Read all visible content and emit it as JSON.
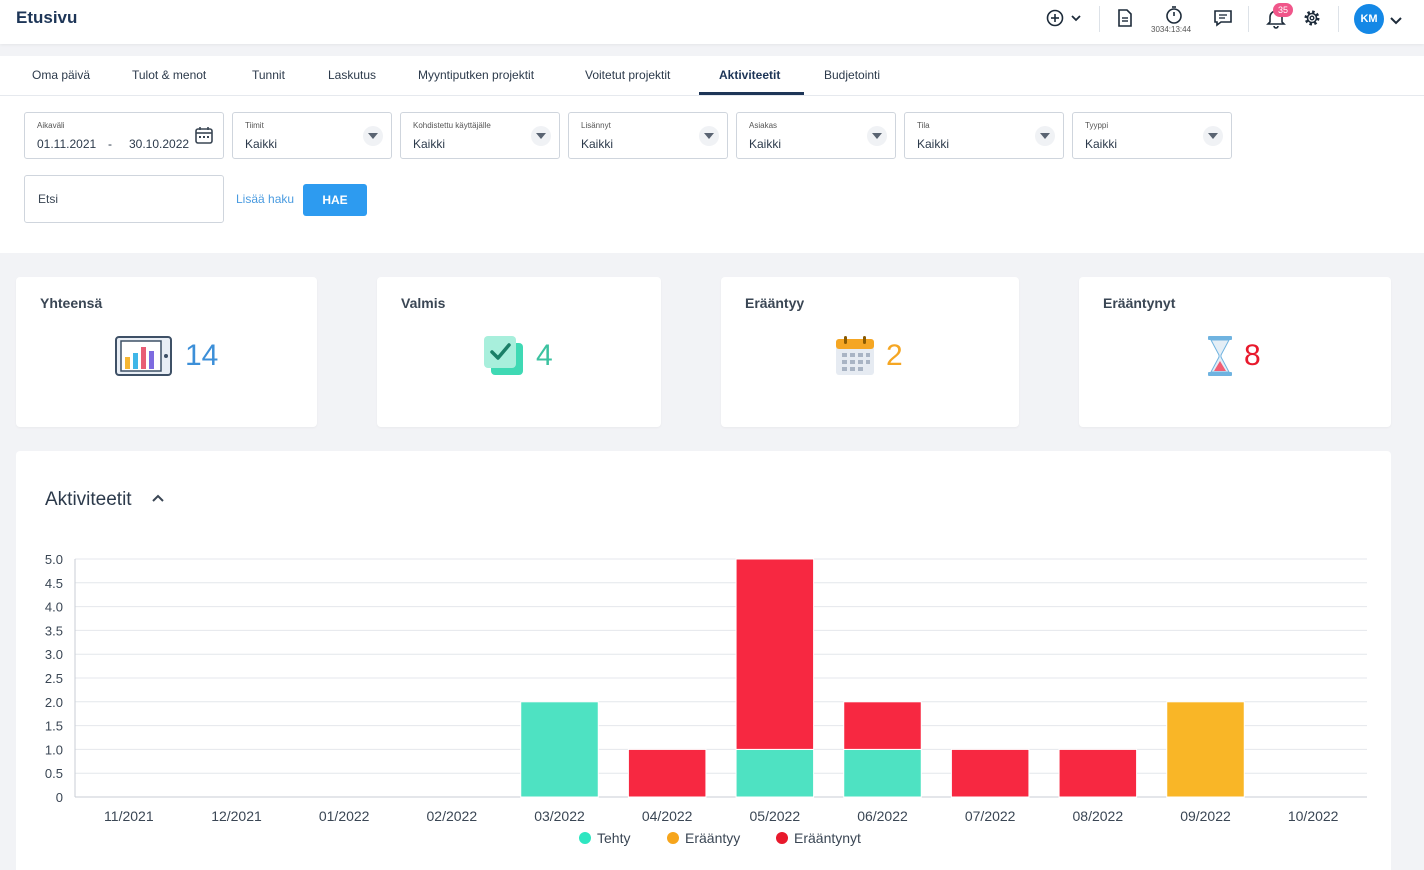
{
  "header": {
    "title": "Etusivu",
    "timer": "3034:13:44",
    "notifications": "35",
    "avatar": "KM"
  },
  "tabs": [
    {
      "label": "Oma päivä"
    },
    {
      "label": "Tulot & menot"
    },
    {
      "label": "Tunnit"
    },
    {
      "label": "Laskutus"
    },
    {
      "label": "Myyntiputken projektit"
    },
    {
      "label": "Voitetut projektit"
    },
    {
      "label": "Aktiviteetit",
      "active": true
    },
    {
      "label": "Budjetointi"
    }
  ],
  "filters": {
    "daterange": {
      "label": "Aikaväli",
      "start": "01.11.2021",
      "sep": "-",
      "end": "30.10.2022"
    },
    "selects": [
      {
        "label": "Tiimit",
        "value": "Kaikki"
      },
      {
        "label": "Kohdistettu käyttäjälle",
        "value": "Kaikki"
      },
      {
        "label": "Lisännyt",
        "value": "Kaikki"
      },
      {
        "label": "Asiakas",
        "value": "Kaikki"
      },
      {
        "label": "Tila",
        "value": "Kaikki"
      },
      {
        "label": "Tyyppi",
        "value": "Kaikki"
      }
    ],
    "search_placeholder": "Etsi",
    "more_search": "Lisää haku",
    "search_button": "HAE"
  },
  "stats": [
    {
      "title": "Yhteensä",
      "value": "14",
      "color": "#3c8fd8",
      "icon": "bar-chart-icon"
    },
    {
      "title": "Valmis",
      "value": "4",
      "color": "#3cc2a0",
      "icon": "check-icon"
    },
    {
      "title": "Erääntyy",
      "value": "2",
      "color": "#f5a623",
      "icon": "calendar-icon"
    },
    {
      "title": "Erääntynyt",
      "value": "8",
      "color": "#e8192c",
      "icon": "hourglass-icon"
    }
  ],
  "panel": {
    "title": "Aktiviteetit"
  },
  "chart_data": {
    "type": "bar",
    "stacked": true,
    "categories": [
      "11/2021",
      "12/2021",
      "01/2022",
      "02/2022",
      "03/2022",
      "04/2022",
      "05/2022",
      "06/2022",
      "07/2022",
      "08/2022",
      "09/2022",
      "10/2022"
    ],
    "series": [
      {
        "name": "Tehty",
        "color": "#4ee2c2",
        "values": [
          0,
          0,
          0,
          0,
          2,
          0,
          1,
          1,
          0,
          0,
          0,
          0
        ]
      },
      {
        "name": "Erääntyy",
        "color": "#f9b627",
        "values": [
          0,
          0,
          0,
          0,
          0,
          0,
          0,
          0,
          0,
          0,
          2,
          0
        ]
      },
      {
        "name": "Erääntynyt",
        "color": "#f72841",
        "values": [
          0,
          0,
          0,
          0,
          0,
          1,
          4,
          1,
          1,
          1,
          0,
          0
        ]
      }
    ],
    "legend_colors": [
      "#2ee6c1",
      "#f6a51c",
      "#e8192c"
    ],
    "yticks": [
      "0",
      "0.5",
      "1.0",
      "1.5",
      "2.0",
      "2.5",
      "3.0",
      "3.5",
      "4.0",
      "4.5",
      "5.0"
    ],
    "ylim": [
      0,
      5
    ],
    "grid": true,
    "legend_position": "bottom"
  }
}
